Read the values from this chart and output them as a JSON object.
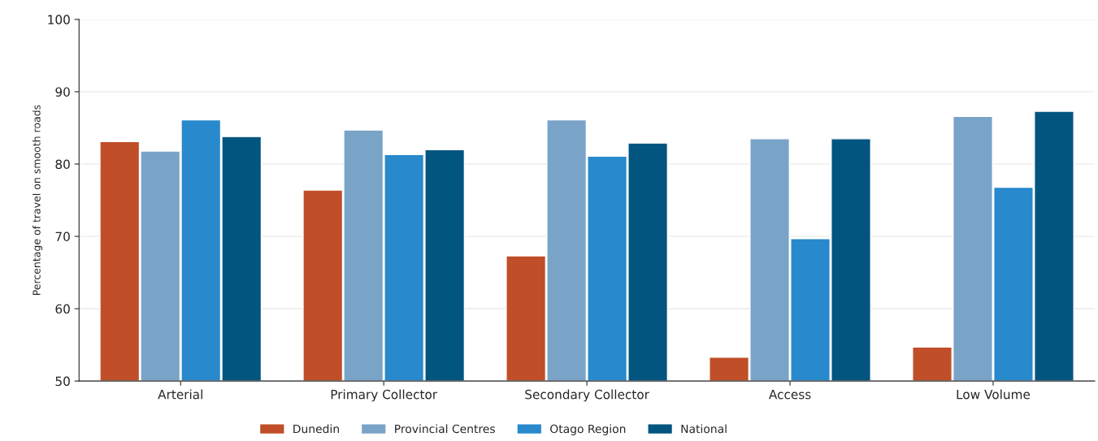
{
  "chart_data": {
    "type": "bar",
    "ylabel": "Percentage of travel on smooth roads",
    "categories": [
      "Arterial",
      "Primary Collector",
      "Secondary Collector",
      "Access",
      "Low Volume"
    ],
    "series": [
      {
        "name": "Dunedin",
        "color": "#c04e28",
        "values": [
          83.1,
          76.4,
          67.3,
          53.3,
          54.7
        ]
      },
      {
        "name": "Provincial Centres",
        "color": "#7aa3c8",
        "values": [
          81.8,
          84.7,
          86.1,
          83.5,
          86.6
        ]
      },
      {
        "name": "Otago Region",
        "color": "#2889cc",
        "values": [
          86.1,
          81.3,
          81.1,
          69.7,
          76.8
        ]
      },
      {
        "name": "National",
        "color": "#02557f",
        "values": [
          83.8,
          82.0,
          82.9,
          83.5,
          87.3
        ]
      }
    ],
    "ylim": [
      50,
      100
    ],
    "yticks": [
      50,
      60,
      70,
      80,
      90,
      100
    ],
    "grid": "y",
    "legend": "bottom"
  }
}
